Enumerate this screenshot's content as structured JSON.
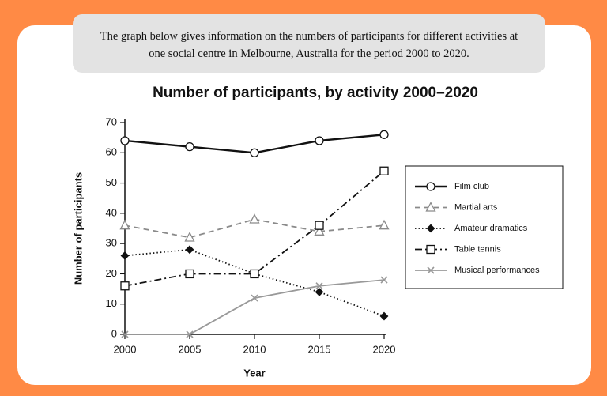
{
  "intro": "The graph below gives information on the numbers of participants for different activities at one social centre in Melbourne, Australia for the period 2000 to 2020.",
  "chart_data": {
    "type": "line",
    "title": "Number of participants, by activity 2000–2020",
    "x_label": "Year",
    "y_label": "Number of participants",
    "x": [
      2000,
      2005,
      2010,
      2015,
      2020
    ],
    "xlim": [
      2000,
      2020
    ],
    "xticks": [
      2000,
      2005,
      2010,
      2015,
      2020
    ],
    "ylim": [
      0,
      70
    ],
    "yticks": [
      0,
      10,
      20,
      30,
      40,
      50,
      60,
      70
    ],
    "series": [
      {
        "name": "Film club",
        "color": "#111111",
        "dash": "solid",
        "marker": "circle",
        "values": [
          64,
          62,
          60,
          64,
          66
        ]
      },
      {
        "name": "Martial arts",
        "color": "#8a8a8a",
        "dash": "dashed",
        "marker": "triangle",
        "values": [
          36,
          32,
          38,
          34,
          36
        ]
      },
      {
        "name": "Amateur dramatics",
        "color": "#111111",
        "dash": "dotted",
        "marker": "diamond",
        "values": [
          26,
          28,
          20,
          14,
          6
        ]
      },
      {
        "name": "Table tennis",
        "color": "#111111",
        "dash": "dashdot",
        "marker": "square",
        "values": [
          16,
          20,
          20,
          36,
          54
        ]
      },
      {
        "name": "Musical performances",
        "color": "#999999",
        "dash": "solid",
        "marker": "x",
        "values": [
          0,
          0,
          12,
          16,
          18
        ]
      }
    ]
  }
}
